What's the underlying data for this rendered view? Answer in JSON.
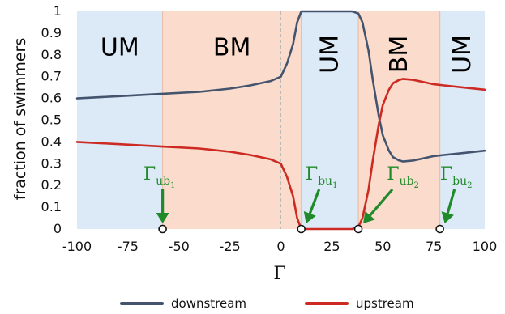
{
  "chart_data": {
    "type": "line",
    "xlabel": "Γ",
    "ylabel": "fraction of swimmers",
    "xlim": [
      -100,
      100
    ],
    "ylim": [
      0,
      1
    ],
    "x_ticks": [
      "-100",
      "-75",
      "-50",
      "-25",
      "0",
      "25",
      "50",
      "75",
      "100"
    ],
    "y_ticks": [
      "0",
      "0.1",
      "0.2",
      "0.3",
      "0.4",
      "0.5",
      "0.6",
      "0.7",
      "0.8",
      "0.9",
      "1"
    ],
    "regions": [
      {
        "label": "UM",
        "x_start": -100,
        "x_end": -58,
        "color": "#dce9f6",
        "rotated": false
      },
      {
        "label": "BM",
        "x_start": -58,
        "x_end": 10,
        "color": "#fbdccc",
        "rotated": false
      },
      {
        "label": "UM",
        "x_start": 10,
        "x_end": 38,
        "color": "#dce9f6",
        "rotated": true
      },
      {
        "label": "BM",
        "x_start": 38,
        "x_end": 78,
        "color": "#fbdccc",
        "rotated": true
      },
      {
        "label": "UM",
        "x_start": 78,
        "x_end": 100,
        "color": "#dce9f6",
        "rotated": true
      }
    ],
    "series": [
      {
        "name": "downstream",
        "color": "#44546f",
        "x": [
          -100,
          -80,
          -60,
          -40,
          -25,
          -15,
          -5,
          0,
          3,
          6,
          8,
          10,
          12,
          15,
          20,
          25,
          30,
          35,
          38,
          40,
          43,
          45,
          48,
          50,
          53,
          55,
          58,
          60,
          65,
          70,
          75,
          80,
          90,
          100
        ],
        "y": [
          0.6,
          0.61,
          0.62,
          0.63,
          0.645,
          0.66,
          0.68,
          0.7,
          0.76,
          0.85,
          0.95,
          1.0,
          1.0,
          1.0,
          1.0,
          1.0,
          1.0,
          1.0,
          0.99,
          0.95,
          0.82,
          0.69,
          0.52,
          0.43,
          0.36,
          0.33,
          0.315,
          0.31,
          0.315,
          0.325,
          0.335,
          0.34,
          0.35,
          0.36
        ]
      },
      {
        "name": "upstream",
        "color": "#cc2a22",
        "x": [
          -100,
          -80,
          -60,
          -40,
          -25,
          -15,
          -5,
          0,
          3,
          6,
          8,
          10,
          12,
          15,
          20,
          25,
          30,
          35,
          38,
          40,
          43,
          45,
          48,
          50,
          53,
          55,
          58,
          60,
          65,
          70,
          75,
          80,
          90,
          100
        ],
        "y": [
          0.4,
          0.39,
          0.38,
          0.37,
          0.355,
          0.34,
          0.32,
          0.3,
          0.24,
          0.15,
          0.05,
          0.0,
          0.0,
          0.0,
          0.0,
          0.0,
          0.0,
          0.0,
          0.01,
          0.05,
          0.18,
          0.31,
          0.48,
          0.57,
          0.64,
          0.67,
          0.685,
          0.69,
          0.685,
          0.675,
          0.665,
          0.66,
          0.65,
          0.64
        ]
      }
    ],
    "critical_points": [
      {
        "symbol": "Γ",
        "sub": "ub",
        "subsub": "1",
        "x": -58
      },
      {
        "symbol": "Γ",
        "sub": "bu",
        "subsub": "1",
        "x": 10
      },
      {
        "symbol": "Γ",
        "sub": "ub",
        "subsub": "2",
        "x": 38
      },
      {
        "symbol": "Γ",
        "sub": "bu",
        "subsub": "2",
        "x": 78
      }
    ],
    "annotation_color": "#1f8a2a",
    "legend": {
      "placement": "bottom",
      "entries": [
        "downstream",
        "upstream"
      ]
    }
  }
}
